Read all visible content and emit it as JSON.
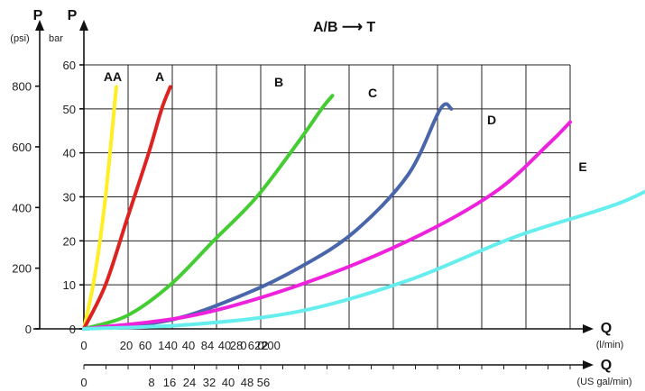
{
  "chart_data": {
    "type": "line",
    "title": "A/B ⟶ T",
    "y_axes": {
      "bar": {
        "label": "P",
        "unit": "bar",
        "ticks": [
          0,
          10,
          20,
          30,
          40,
          50,
          60
        ],
        "ylim": [
          0,
          60
        ]
      },
      "psi": {
        "label": "P",
        "unit": "(psi)",
        "ticks": [
          0,
          200,
          400,
          600,
          800
        ]
      }
    },
    "x_axes": {
      "lmin": {
        "label": "Q",
        "unit": "(l/min)",
        "ticks": [
          "0",
          "20",
          "60",
          "140",
          "40",
          "84",
          "40",
          "28",
          "0",
          "62",
          "0",
          "2",
          "200"
        ],
        "xlim": [
          0,
          450
        ]
      },
      "gpm": {
        "label": "Q",
        "unit": "(US gal/min)",
        "ticks": [
          "0",
          "8",
          "16",
          "24",
          "32",
          "40",
          "48",
          "56"
        ]
      }
    },
    "grid": true,
    "series": [
      {
        "name": "AA",
        "color": "#ffee22",
        "points": [
          [
            0,
            0
          ],
          [
            10,
            12
          ],
          [
            20,
            30
          ],
          [
            30,
            55
          ]
        ]
      },
      {
        "name": "A",
        "color": "#dd2222",
        "points": [
          [
            0,
            0
          ],
          [
            20,
            10
          ],
          [
            40,
            25
          ],
          [
            60,
            40
          ],
          [
            72,
            50
          ],
          [
            80,
            55
          ]
        ]
      },
      {
        "name": "B",
        "color": "#44cc33",
        "points": [
          [
            0,
            0
          ],
          [
            40,
            3
          ],
          [
            80,
            10
          ],
          [
            120,
            20
          ],
          [
            160,
            30
          ],
          [
            200,
            43
          ],
          [
            220,
            50
          ],
          [
            230,
            53
          ]
        ]
      },
      {
        "name": "C",
        "color": "#4a66aa",
        "points": [
          [
            0,
            0
          ],
          [
            80,
            2
          ],
          [
            150,
            8
          ],
          [
            200,
            14
          ],
          [
            250,
            22
          ],
          [
            300,
            35
          ],
          [
            330,
            50
          ],
          [
            340,
            50
          ]
        ]
      },
      {
        "name": "D",
        "color": "#ee22dd",
        "points": [
          [
            0,
            0
          ],
          [
            100,
            3
          ],
          [
            200,
            10
          ],
          [
            300,
            20
          ],
          [
            380,
            31
          ],
          [
            430,
            42
          ],
          [
            450,
            47
          ]
        ]
      },
      {
        "name": "E",
        "color": "#66eeee",
        "points": [
          [
            0,
            0
          ],
          [
            100,
            1
          ],
          [
            200,
            4
          ],
          [
            300,
            11
          ],
          [
            400,
            21
          ],
          [
            500,
            29
          ],
          [
            560,
            37
          ]
        ]
      }
    ]
  }
}
